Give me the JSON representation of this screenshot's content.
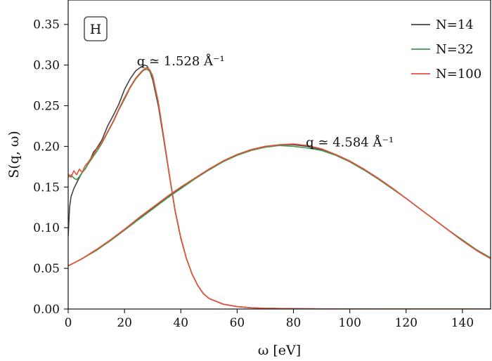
{
  "chart_data": {
    "type": "line",
    "panel_label": "H",
    "xlabel": "ω [eV]",
    "ylabel": "S(q, ω)",
    "xlim": [
      0,
      150
    ],
    "ylim": [
      0,
      0.38
    ],
    "xticks": [
      0,
      20,
      40,
      60,
      80,
      100,
      120,
      140
    ],
    "yticks": [
      0.0,
      0.05,
      0.1,
      0.15,
      0.2,
      0.25,
      0.3,
      0.35
    ],
    "ytick_labels": [
      "0.00",
      "0.05",
      "0.10",
      "0.15",
      "0.20",
      "0.25",
      "0.30",
      "0.35"
    ],
    "grid": false,
    "legend_position": "top-right",
    "colors": {
      "N14": "#444444",
      "N32": "#3f9a49",
      "N100": "#e8503c"
    },
    "annotations": [
      {
        "text": "q ≃ 1.528 Å⁻¹",
        "x": 40,
        "y": 0.305
      },
      {
        "text": "q ≃ 4.584 Å⁻¹",
        "x": 100,
        "y": 0.205
      }
    ],
    "legend": [
      "N=14",
      "N=32",
      "N=100"
    ],
    "groups": [
      {
        "q_label": "q ≃ 1.528 Å⁻¹",
        "series": [
          {
            "name": "N=14",
            "color": "#444444",
            "x": [
              0,
              0.5,
              1,
              2,
              3,
              4,
              5,
              6,
              7,
              8,
              9,
              10,
              12,
              14,
              16,
              18,
              20,
              22,
              24,
              26,
              27,
              28,
              29,
              30,
              32,
              34,
              36,
              38,
              40,
              42,
              44,
              46,
              48,
              50,
              55,
              60,
              65,
              70,
              80,
              90,
              100,
              110,
              120,
              130,
              140,
              150
            ],
            "y": [
              0.09,
              0.125,
              0.138,
              0.148,
              0.155,
              0.162,
              0.168,
              0.172,
              0.178,
              0.185,
              0.193,
              0.197,
              0.208,
              0.225,
              0.238,
              0.252,
              0.27,
              0.283,
              0.293,
              0.298,
              0.3,
              0.299,
              0.292,
              0.282,
              0.25,
              0.207,
              0.163,
              0.12,
              0.087,
              0.062,
              0.043,
              0.029,
              0.019,
              0.013,
              0.006,
              0.003,
              0.0015,
              0.0008,
              0.0004,
              0.0002,
              0.0001,
              0.0,
              0.0,
              0.0,
              0.0,
              0.0
            ]
          },
          {
            "name": "N=32",
            "color": "#3f9a49",
            "x": [
              0,
              1,
              2,
              3,
              4,
              5,
              6,
              7,
              8,
              9,
              10,
              12,
              14,
              16,
              18,
              20,
              22,
              24,
              26,
              27,
              28,
              29,
              30,
              32,
              34,
              36,
              38,
              40,
              42,
              44,
              46,
              48,
              50,
              55,
              60,
              65,
              70,
              80,
              90,
              100,
              110,
              120,
              130,
              140,
              150
            ],
            "y": [
              0.162,
              0.165,
              0.161,
              0.159,
              0.163,
              0.168,
              0.172,
              0.178,
              0.183,
              0.188,
              0.193,
              0.204,
              0.217,
              0.23,
              0.245,
              0.258,
              0.272,
              0.283,
              0.291,
              0.294,
              0.295,
              0.292,
              0.285,
              0.253,
              0.208,
              0.163,
              0.12,
              0.087,
              0.062,
              0.043,
              0.029,
              0.019,
              0.013,
              0.006,
              0.003,
              0.0015,
              0.0008,
              0.0004,
              0.0002,
              0.0001,
              0.0,
              0.0,
              0.0,
              0.0,
              0.0
            ]
          },
          {
            "name": "N=100",
            "color": "#e8503c",
            "x": [
              0,
              1,
              2,
              3,
              4,
              5,
              6,
              7,
              8,
              9,
              10,
              12,
              14,
              16,
              18,
              20,
              22,
              24,
              26,
              27,
              28,
              29,
              30,
              32,
              34,
              36,
              38,
              40,
              42,
              44,
              46,
              48,
              50,
              55,
              60,
              65,
              70,
              80,
              90,
              100,
              110,
              120,
              130,
              140,
              150
            ],
            "y": [
              0.166,
              0.162,
              0.17,
              0.165,
              0.172,
              0.168,
              0.176,
              0.18,
              0.185,
              0.19,
              0.196,
              0.205,
              0.218,
              0.231,
              0.246,
              0.26,
              0.273,
              0.284,
              0.292,
              0.295,
              0.297,
              0.294,
              0.287,
              0.255,
              0.21,
              0.164,
              0.121,
              0.088,
              0.062,
              0.043,
              0.029,
              0.019,
              0.013,
              0.006,
              0.003,
              0.0015,
              0.0008,
              0.0004,
              0.0002,
              0.0001,
              0.0,
              0.0,
              0.0,
              0.0,
              0.0
            ]
          }
        ]
      },
      {
        "q_label": "q ≃ 4.584 Å⁻¹",
        "series": [
          {
            "name": "N=14",
            "color": "#444444",
            "x": [
              0,
              5,
              10,
              15,
              20,
              25,
              30,
              35,
              40,
              45,
              50,
              55,
              60,
              65,
              70,
              75,
              80,
              85,
              90,
              95,
              100,
              105,
              110,
              115,
              120,
              125,
              130,
              135,
              140,
              145,
              150
            ],
            "y": [
              0.053,
              0.062,
              0.073,
              0.085,
              0.098,
              0.111,
              0.124,
              0.137,
              0.149,
              0.161,
              0.172,
              0.182,
              0.19,
              0.196,
              0.2,
              0.202,
              0.202,
              0.2,
              0.196,
              0.19,
              0.182,
              0.172,
              0.161,
              0.149,
              0.136,
              0.123,
              0.11,
              0.097,
              0.084,
              0.072,
              0.062
            ]
          },
          {
            "name": "N=32",
            "color": "#3f9a49",
            "x": [
              0,
              5,
              10,
              15,
              20,
              25,
              30,
              35,
              40,
              45,
              50,
              55,
              60,
              65,
              70,
              75,
              80,
              85,
              90,
              95,
              100,
              105,
              110,
              115,
              120,
              125,
              130,
              135,
              140,
              145,
              150
            ],
            "y": [
              0.053,
              0.062,
              0.072,
              0.084,
              0.097,
              0.11,
              0.123,
              0.136,
              0.148,
              0.16,
              0.171,
              0.181,
              0.189,
              0.195,
              0.199,
              0.201,
              0.2,
              0.198,
              0.195,
              0.189,
              0.181,
              0.171,
              0.16,
              0.148,
              0.136,
              0.123,
              0.11,
              0.097,
              0.085,
              0.073,
              0.063
            ]
          },
          {
            "name": "N=100",
            "color": "#e8503c",
            "x": [
              0,
              5,
              10,
              15,
              20,
              25,
              30,
              35,
              40,
              45,
              50,
              55,
              60,
              65,
              70,
              75,
              80,
              85,
              90,
              95,
              100,
              105,
              110,
              115,
              120,
              125,
              130,
              135,
              140,
              145,
              150
            ],
            "y": [
              0.053,
              0.062,
              0.073,
              0.085,
              0.098,
              0.112,
              0.125,
              0.138,
              0.15,
              0.161,
              0.172,
              0.182,
              0.19,
              0.196,
              0.2,
              0.202,
              0.203,
              0.201,
              0.197,
              0.19,
              0.182,
              0.172,
              0.161,
              0.149,
              0.136,
              0.123,
              0.11,
              0.097,
              0.084,
              0.072,
              0.062
            ]
          }
        ]
      }
    ]
  }
}
